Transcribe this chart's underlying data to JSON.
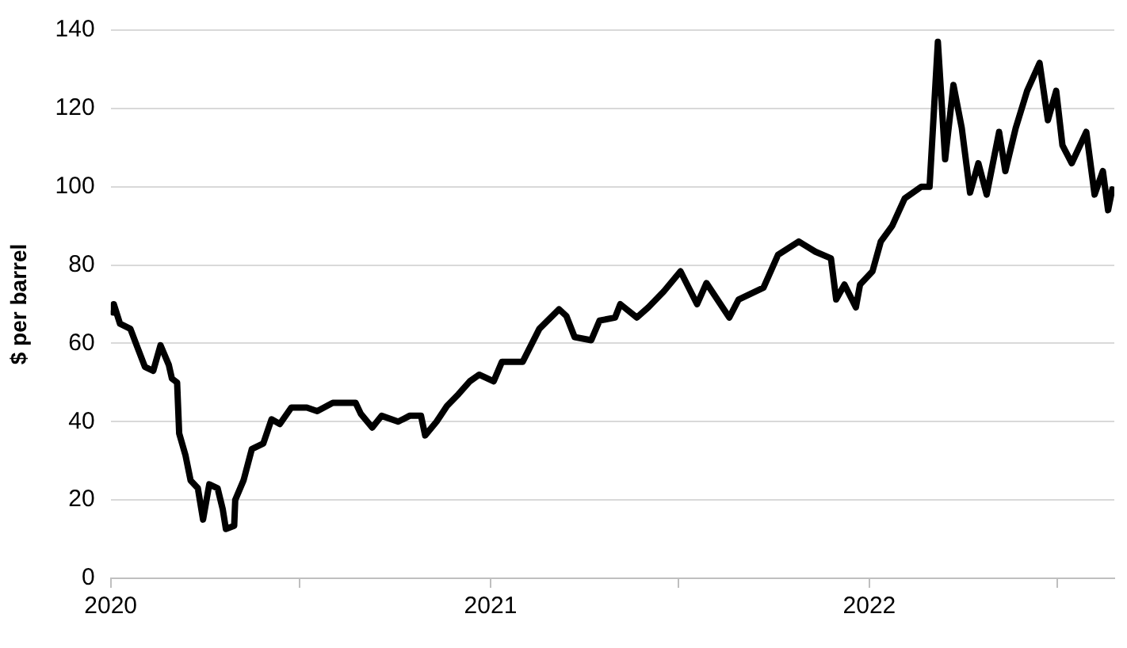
{
  "chart_data": {
    "type": "line",
    "ylabel": "$ per barrel",
    "x": [
      "2020-01-03",
      "2020-01-04",
      "2020-01-10",
      "2020-01-20",
      "2020-01-26",
      "2020-02-03",
      "2020-02-11",
      "2020-02-18",
      "2020-02-26",
      "2020-02-29",
      "2020-03-05",
      "2020-03-07",
      "2020-03-13",
      "2020-03-18",
      "2020-03-25",
      "2020-03-30",
      "2020-04-05",
      "2020-04-13",
      "2020-04-18",
      "2020-04-21",
      "2020-04-29",
      "2020-04-30",
      "2020-05-08",
      "2020-05-16",
      "2020-05-27",
      "2020-06-04",
      "2020-06-12",
      "2020-06-23",
      "2020-07-08",
      "2020-07-18",
      "2020-08-02",
      "2020-08-24",
      "2020-08-29",
      "2020-09-09",
      "2020-09-18",
      "2020-10-04",
      "2020-10-15",
      "2020-10-26",
      "2020-10-30",
      "2020-11-10",
      "2020-11-20",
      "2020-12-01",
      "2020-12-12",
      "2020-12-21",
      "2021-01-04",
      "2021-01-12",
      "2021-02-01",
      "2021-02-17",
      "2021-03-08",
      "2021-03-15",
      "2021-03-23",
      "2021-04-08",
      "2021-04-16",
      "2021-05-01",
      "2021-05-06",
      "2021-05-22",
      "2021-06-02",
      "2021-06-17",
      "2021-07-03",
      "2021-07-19",
      "2021-07-28",
      "2021-08-19",
      "2021-08-28",
      "2021-09-21",
      "2021-10-05",
      "2021-10-25",
      "2021-11-10",
      "2021-11-25",
      "2021-11-30",
      "2021-12-08",
      "2021-12-19",
      "2021-12-23",
      "2022-01-04",
      "2022-01-12",
      "2022-01-23",
      "2022-02-04",
      "2022-02-20",
      "2022-02-28",
      "2022-03-08",
      "2022-03-15",
      "2022-03-23",
      "2022-03-31",
      "2022-04-08",
      "2022-04-16",
      "2022-04-24",
      "2022-05-06",
      "2022-05-12",
      "2022-05-22",
      "2022-06-02",
      "2022-06-14",
      "2022-06-22",
      "2022-06-30",
      "2022-07-06",
      "2022-07-15",
      "2022-07-29",
      "2022-08-06",
      "2022-08-14",
      "2022-08-19",
      "2022-08-23"
    ],
    "series": [
      {
        "color": "#000000",
        "values": [
          67.9,
          70,
          65,
          63.7,
          59.5,
          54,
          53,
          59.5,
          54.5,
          51,
          50,
          37,
          31.5,
          25,
          23,
          15,
          24,
          23,
          17.6,
          12.6,
          13.4,
          20,
          25,
          33,
          34.4,
          40.6,
          39.4,
          43.6,
          43.6,
          42.7,
          44.8,
          44.8,
          42,
          38.5,
          41.5,
          40,
          41.5,
          41.5,
          36.5,
          40,
          44,
          47,
          50.3,
          52,
          50.3,
          55.3,
          55.3,
          63.7,
          68.7,
          67,
          61.6,
          60.8,
          65.8,
          66.6,
          70,
          66.6,
          69.2,
          73.3,
          78.4,
          70,
          75.4,
          66.6,
          71.2,
          74.2,
          82.6,
          86,
          83.4,
          81.7,
          71.2,
          75,
          69.2,
          75,
          78.4,
          86,
          90,
          97,
          100,
          100,
          137,
          107,
          126,
          115,
          98.5,
          106,
          98,
          114,
          104,
          115,
          124.5,
          131.6,
          117,
          124.5,
          110.6,
          106,
          114,
          98,
          104,
          94,
          99.3
        ]
      }
    ],
    "xlim": [
      "2020-01-01",
      "2022-08-25"
    ],
    "xticks": [
      {
        "value": "2020-01-01",
        "label": "2020"
      },
      {
        "value": "2020-07-01",
        "label": null
      },
      {
        "value": "2021-01-01",
        "label": "2021"
      },
      {
        "value": "2021-07-01",
        "label": null
      },
      {
        "value": "2022-01-01",
        "label": "2022"
      },
      {
        "value": "2022-07-01",
        "label": null
      }
    ],
    "ylim": [
      0,
      140
    ],
    "yticks": [
      0,
      20,
      40,
      60,
      80,
      100,
      120,
      140
    ],
    "grid": "y",
    "legend": false,
    "marker": "none",
    "line_style": "solid"
  }
}
